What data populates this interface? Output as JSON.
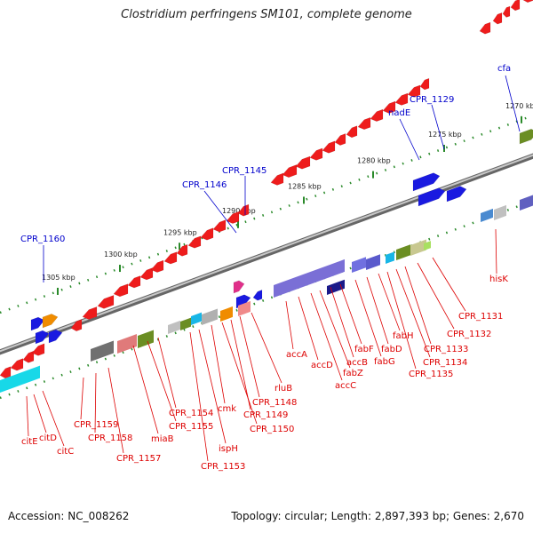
{
  "title": "Clostridium perfringens SM101, complete genome",
  "footer": {
    "accession": "Accession: NC_008262",
    "summary": "Topology: circular; Length: 2,897,393 bp; Genes: 2,670"
  },
  "colors": {
    "forward_gene_label": "#0000cc",
    "reverse_gene_label": "#dd0000",
    "backbone": "#888888",
    "tick": "#2a8a2a"
  },
  "ticks": [
    "1270 kbp",
    "1275 kbp",
    "1280 kbp",
    "1285 kbp",
    "1290 kbp",
    "1295 kbp",
    "1300 kbp",
    "1305 kbp"
  ],
  "forward_labels": [
    "cfa",
    "CPR_1129",
    "nadE",
    "CPR_1145",
    "CPR_1146",
    "CPR_1160"
  ],
  "reverse_labels": [
    "hisK",
    "CPR_1131",
    "CPR_1132",
    "CPR_1133",
    "CPR_1134",
    "CPR_1135",
    "fabH",
    "fabD",
    "fabG",
    "fabF",
    "accB",
    "fabZ",
    "accC",
    "accD",
    "accA",
    "rluB",
    "CPR_1148",
    "CPR_1149",
    "CPR_1150",
    "cmk",
    "CPR_1153",
    "ispH",
    "CPR_1154",
    "CPR_1155",
    "miaB",
    "CPR_1157",
    "CPR_1158",
    "CPR_1159",
    "citC",
    "citD",
    "citE"
  ]
}
